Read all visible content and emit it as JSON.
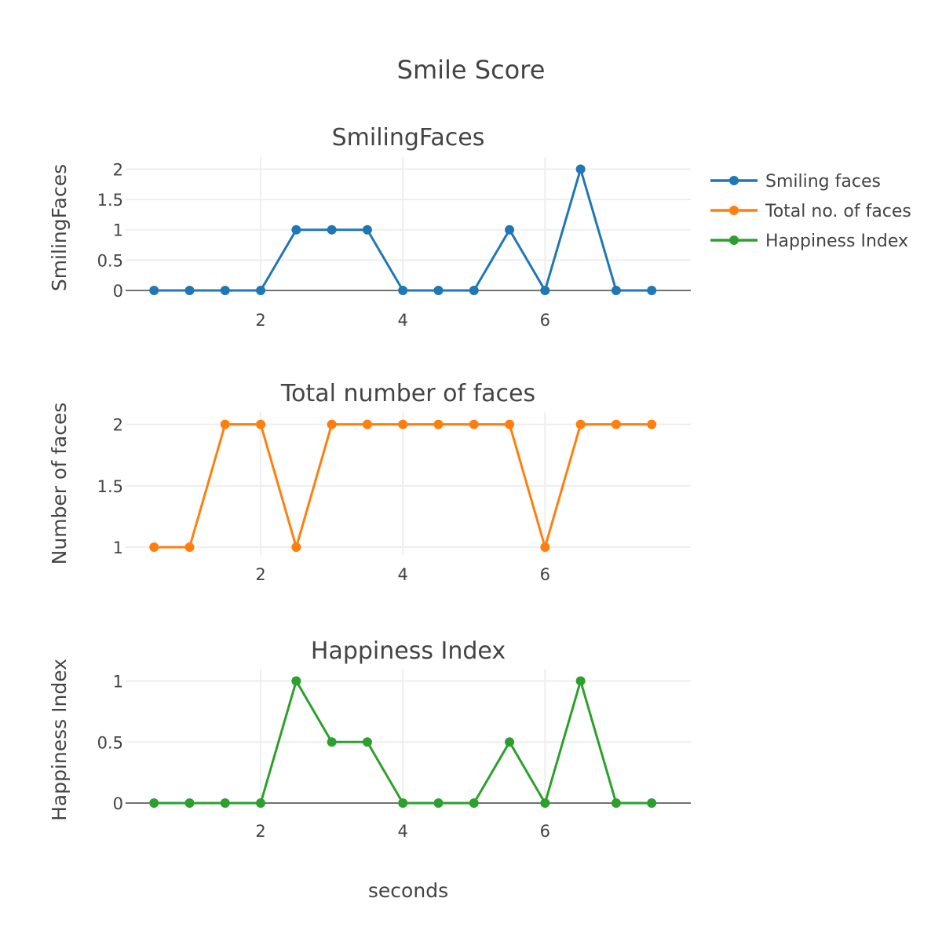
{
  "chart_data": {
    "type": "line",
    "title": "Smile Score",
    "xlabel": "seconds",
    "x": [
      0.5,
      1,
      1.5,
      2,
      2.5,
      3,
      3.5,
      4,
      4.5,
      5,
      5.5,
      6,
      6.5,
      7,
      7.5
    ],
    "xlim": [
      0.1,
      8.05
    ],
    "xticks": [
      2,
      4,
      6
    ],
    "grid": true,
    "legend": "top-right",
    "subplots": [
      {
        "title": "SmilingFaces",
        "ylabel": "SmilingFaces",
        "ylim": [
          0,
          2.2
        ],
        "yticks": [
          0,
          0.5,
          1,
          1.5,
          2
        ],
        "zero_line": true,
        "series": [
          {
            "name": "Smiling faces",
            "color": "#1f77b4",
            "values": [
              0,
              0,
              0,
              0,
              1,
              1,
              1,
              0,
              0,
              0,
              1,
              0,
              2,
              0,
              0
            ]
          }
        ]
      },
      {
        "title": "Total number of faces",
        "ylabel": "Number of faces",
        "ylim": [
          1,
          2.1
        ],
        "yticks": [
          1,
          1.5,
          2
        ],
        "zero_line": false,
        "series": [
          {
            "name": "Total no. of faces",
            "color": "#ff7f0e",
            "values": [
              1,
              1,
              2,
              2,
              1,
              2,
              2,
              2,
              2,
              2,
              2,
              1,
              2,
              2,
              2
            ]
          }
        ]
      },
      {
        "title": "Happiness Index",
        "ylabel": "Happiness Index",
        "ylim": [
          0,
          1.1
        ],
        "yticks": [
          0,
          0.5,
          1
        ],
        "zero_line": true,
        "series": [
          {
            "name": "Happiness Index",
            "color": "#2ca02c",
            "values": [
              0,
              0,
              0,
              0,
              1,
              0.5,
              0.5,
              0,
              0,
              0,
              0.5,
              0,
              1,
              0,
              0
            ]
          }
        ]
      }
    ]
  }
}
